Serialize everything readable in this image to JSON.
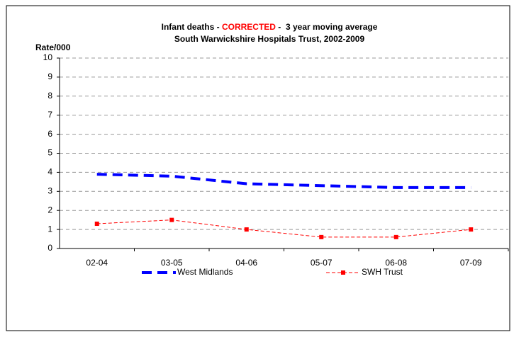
{
  "chart_data": {
    "type": "line",
    "title": [
      "Infant deaths - ",
      "CORRECTED",
      " -  3 year moving average"
    ],
    "title_colors": [
      "#000000",
      "#ff0000",
      "#000000"
    ],
    "subtitle": "South Warwickshire Hospitals Trust, 2002-2009",
    "y_label": "Rate/000",
    "categories": [
      "02-04",
      "03-05",
      "04-06",
      "05-07",
      "06-08",
      "07-09"
    ],
    "series": [
      {
        "name": "West Midlands",
        "color": "#0000ff",
        "values": [
          3.9,
          3.8,
          3.4,
          3.3,
          3.2,
          3.2
        ]
      },
      {
        "name": "SWH Trust",
        "color": "#ff0000",
        "values": [
          1.3,
          1.5,
          1.0,
          0.6,
          0.6,
          1.0
        ]
      }
    ],
    "ylim": [
      0,
      10
    ],
    "yticks": [
      0,
      1,
      2,
      3,
      4,
      5,
      6,
      7,
      8,
      9,
      10
    ],
    "grid": true
  }
}
